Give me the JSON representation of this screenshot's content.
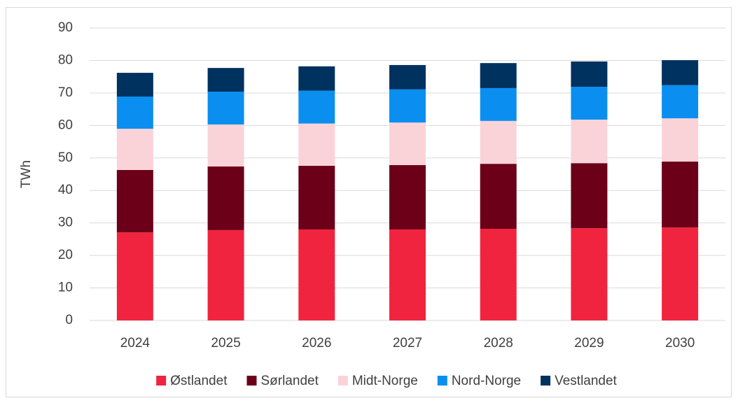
{
  "chart_data": {
    "type": "stacked_bar",
    "y_label": "TWh",
    "categories": [
      "2024",
      "2025",
      "2026",
      "2027",
      "2028",
      "2029",
      "2030"
    ],
    "series": [
      {
        "name": "Østlandet",
        "color": "#f0243f",
        "values": [
          27.1,
          27.8,
          28.0,
          28.0,
          28.2,
          28.4,
          28.6
        ]
      },
      {
        "name": "Sørlandet",
        "color": "#6b0018",
        "values": [
          19.2,
          19.6,
          19.6,
          19.8,
          20.0,
          20.0,
          20.3
        ]
      },
      {
        "name": "Midt-Norge",
        "color": "#fad3d9",
        "values": [
          12.7,
          12.9,
          13.0,
          13.1,
          13.2,
          13.4,
          13.3
        ]
      },
      {
        "name": "Nord-Norge",
        "color": "#0a8ff0",
        "values": [
          9.9,
          10.1,
          10.1,
          10.2,
          10.1,
          10.1,
          10.2
        ]
      },
      {
        "name": "Vestlandet",
        "color": "#00325f",
        "values": [
          7.3,
          7.3,
          7.5,
          7.5,
          7.7,
          7.8,
          7.7
        ]
      }
    ],
    "ylim": [
      0,
      90
    ],
    "yticks": [
      0,
      10,
      20,
      30,
      40,
      50,
      60,
      70,
      80,
      90
    ],
    "grid": true,
    "legend": "bottom"
  }
}
